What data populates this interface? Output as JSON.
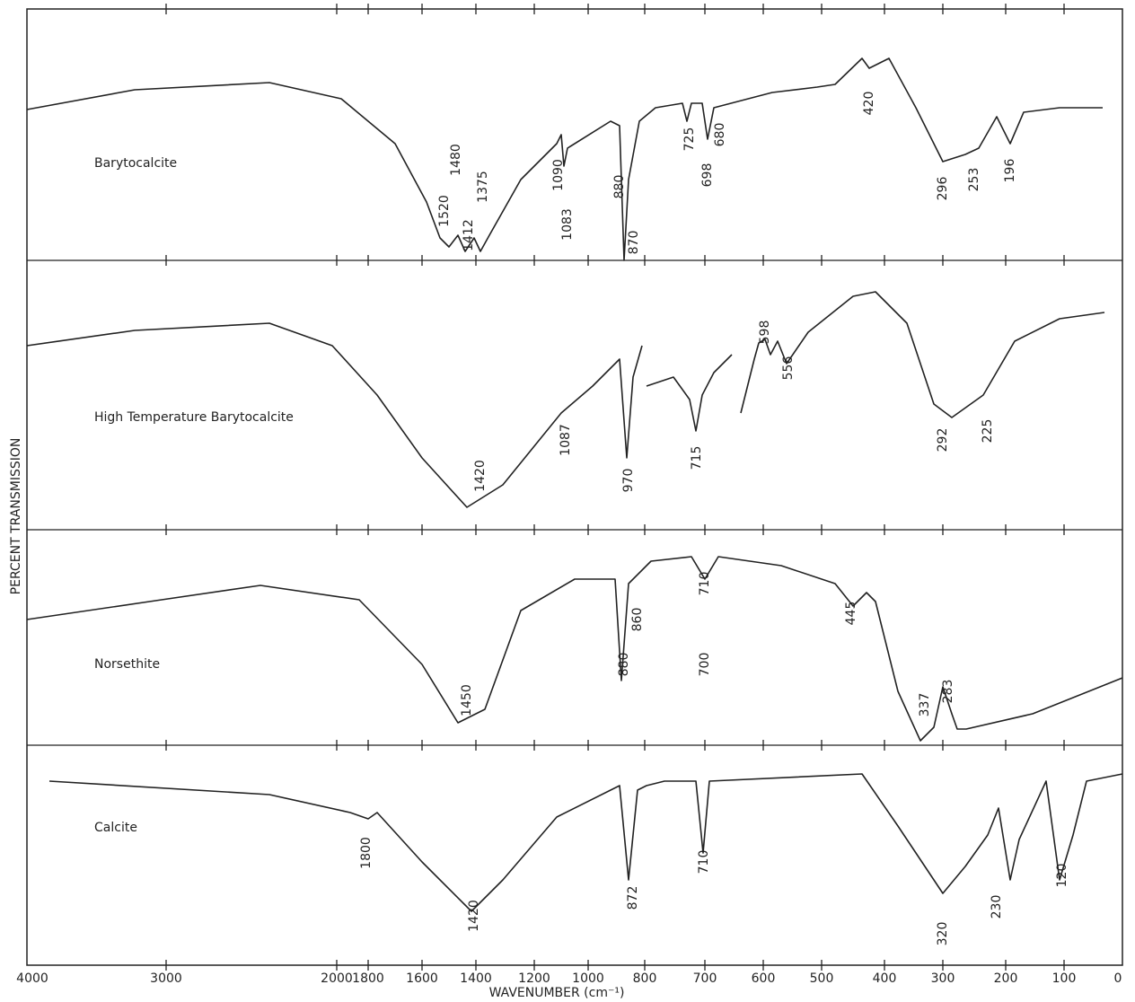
{
  "axis": {
    "y_label": "PERCENT TRANSMISSION",
    "x_label": "WAVENUMBER (cm⁻¹)",
    "x_ticks": [
      "4000",
      "3000",
      "2000",
      "1800",
      "1600",
      "1400",
      "1200",
      "1000",
      "800",
      "700",
      "600",
      "500",
      "400",
      "300",
      "200",
      "100",
      "0"
    ]
  },
  "spectra": [
    {
      "name": "Barytocalcite",
      "peaks": [
        "1520",
        "1480",
        "1412",
        "1375",
        "1090",
        "1083",
        "880",
        "870",
        "725",
        "698",
        "680",
        "420",
        "296",
        "253",
        "196"
      ]
    },
    {
      "name": "High Temperature Barytocalcite",
      "peaks": [
        "1420",
        "1087",
        "970",
        "715",
        "598",
        "556",
        "292",
        "225"
      ]
    },
    {
      "name": "Norsethite",
      "peaks": [
        "1450",
        "880",
        "860",
        "710",
        "700",
        "445",
        "337",
        "283"
      ]
    },
    {
      "name": "Calcite",
      "peaks": [
        "1800",
        "1420",
        "872",
        "710",
        "320",
        "230",
        "120"
      ]
    }
  ]
}
